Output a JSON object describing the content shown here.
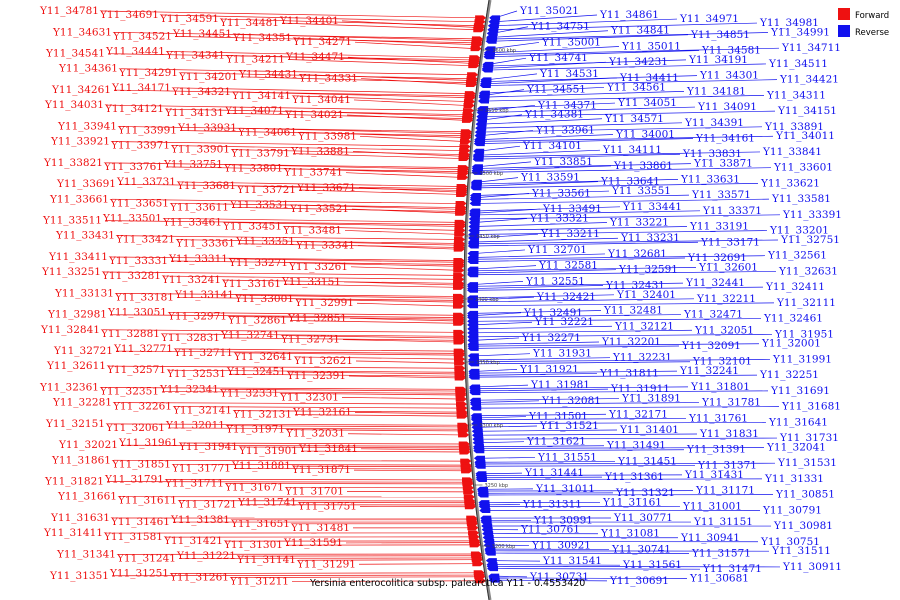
{
  "legend": {
    "forward": {
      "label": "Forward",
      "color": "#ee1111"
    },
    "reverse": {
      "label": "Reverse",
      "color": "#1111ee"
    }
  },
  "caption": "Yersinia enterocolitica subsp. palearctica Y11 - 0.4553420",
  "ticks": [
    "3600 kbp",
    "3550 kbp",
    "3500 kbp",
    "3450 kbp",
    "3400 kbp",
    "3350 kbp",
    "3300 kbp",
    "3250 kbp",
    "3200 kbp"
  ],
  "forward_genes": [
    "Y11_34781",
    "Y11_34691",
    "Y11_34591",
    "Y11_34481",
    "Y11_34401",
    "Y11_34631",
    "Y11_34521",
    "Y11_34451",
    "Y11_34351",
    "Y11_34271",
    "Y11_34541",
    "Y11_34441",
    "Y11_34341",
    "Y11_34211",
    "Y11_34471",
    "Y11_34361",
    "Y11_34291",
    "Y11_34201",
    "Y11_34431",
    "Y11_34331",
    "Y11_34261",
    "Y11_34171",
    "Y11_34321",
    "Y11_34141",
    "Y11_34041",
    "Y11_34031",
    "Y11_34121",
    "Y11_34131",
    "Y11_34071",
    "Y11_34021",
    "Y11_33941",
    "Y11_33991",
    "Y11_33931",
    "Y11_34061",
    "Y11_33981",
    "Y11_33921",
    "Y11_33971",
    "Y11_33901",
    "Y11_33791",
    "Y11_33881",
    "Y11_33821",
    "Y11_33761",
    "Y11_33751",
    "Y11_33801",
    "Y11_33741",
    "Y11_33691",
    "Y11_33731",
    "Y11_33681",
    "Y11_33721",
    "Y11_33671",
    "Y11_33661",
    "Y11_33651",
    "Y11_33611",
    "Y11_33531",
    "Y11_33521",
    "Y11_33511",
    "Y11_33501",
    "Y11_33461",
    "Y11_33451",
    "Y11_33481",
    "Y11_33431",
    "Y11_33421",
    "Y11_33361",
    "Y11_33351",
    "Y11_33341",
    "Y11_33411",
    "Y11_33331",
    "Y11_33311",
    "Y11_33271",
    "Y11_33261",
    "Y11_33251",
    "Y11_33281",
    "Y11_33241",
    "Y11_33161",
    "Y11_33151",
    "Y11_33131",
    "Y11_33181",
    "Y11_33141",
    "Y11_33001",
    "Y11_32991",
    "Y11_32981",
    "Y11_33051",
    "Y11_32971",
    "Y11_32861",
    "Y11_32851",
    "Y11_32841",
    "Y11_32881",
    "Y11_32831",
    "Y11_32741",
    "Y11_32731",
    "Y11_32721",
    "Y11_32771",
    "Y11_32711",
    "Y11_32641",
    "Y11_32621",
    "Y11_32611",
    "Y11_32571",
    "Y11_32531",
    "Y11_32451",
    "Y11_32391",
    "Y11_32361",
    "Y11_32351",
    "Y11_32341",
    "Y11_32331",
    "Y11_32301",
    "Y11_32281",
    "Y11_32261",
    "Y11_32141",
    "Y11_32131",
    "Y11_32161",
    "Y11_32151",
    "Y11_32061",
    "Y11_32011",
    "Y11_31971",
    "Y11_32031",
    "Y11_32021",
    "Y11_31961",
    "Y11_31941",
    "Y11_31901",
    "Y11_31841",
    "Y11_31861",
    "Y11_31851",
    "Y11_31771",
    "Y11_31881",
    "Y11_31871",
    "Y11_31821",
    "Y11_31791",
    "Y11_31711",
    "Y11_31671",
    "Y11_31701",
    "Y11_31661",
    "Y11_31611",
    "Y11_31721",
    "Y11_31741",
    "Y11_31751",
    "Y11_31631",
    "Y11_31461",
    "Y11_31381",
    "Y11_31651",
    "Y11_31481",
    "Y11_31411",
    "Y11_31581",
    "Y11_31421",
    "Y11_31301",
    "Y11_31591",
    "Y11_31341",
    "Y11_31241",
    "Y11_31221",
    "Y11_31141",
    "Y11_31291",
    "Y11_31351",
    "Y11_31251",
    "Y11_31261",
    "Y11_31211"
  ],
  "reverse_genes": [
    "Y11_35021",
    "Y11_34861",
    "Y11_34971",
    "Y11_34981",
    "Y11_34751",
    "Y11_34841",
    "Y11_34851",
    "Y11_34991",
    "Y11_35001",
    "Y11_35011",
    "Y11_34581",
    "Y11_34711",
    "Y11_34741",
    "Y11_34231",
    "Y11_34191",
    "Y11_34511",
    "Y11_34531",
    "Y11_34411",
    "Y11_34301",
    "Y11_34421",
    "Y11_34551",
    "Y11_34561",
    "Y11_34181",
    "Y11_34311",
    "Y11_34371",
    "Y11_34051",
    "Y11_34091",
    "Y11_34151",
    "Y11_34381",
    "Y11_34571",
    "Y11_34391",
    "Y11_33891",
    "Y11_33961",
    "Y11_34001",
    "Y11_34161",
    "Y11_34011",
    "Y11_34101",
    "Y11_34111",
    "Y11_33831",
    "Y11_33841",
    "Y11_33851",
    "Y11_33861",
    "Y11_33871",
    "Y11_33601",
    "Y11_33591",
    "Y11_33641",
    "Y11_33631",
    "Y11_33621",
    "Y11_33561",
    "Y11_33551",
    "Y11_33571",
    "Y11_33581",
    "Y11_33491",
    "Y11_33441",
    "Y11_33371",
    "Y11_33391",
    "Y11_33321",
    "Y11_33221",
    "Y11_33191",
    "Y11_33201",
    "Y11_33211",
    "Y11_33231",
    "Y11_33171",
    "Y11_32751",
    "Y11_32701",
    "Y11_32681",
    "Y11_32691",
    "Y11_32561",
    "Y11_32581",
    "Y11_32591",
    "Y11_32601",
    "Y11_32631",
    "Y11_32551",
    "Y11_32431",
    "Y11_32441",
    "Y11_32411",
    "Y11_32421",
    "Y11_32401",
    "Y11_32211",
    "Y11_32111",
    "Y11_32491",
    "Y11_32481",
    "Y11_32471",
    "Y11_32461",
    "Y11_32221",
    "Y11_32121",
    "Y11_32051",
    "Y11_31951",
    "Y11_32271",
    "Y11_32201",
    "Y11_32091",
    "Y11_32001",
    "Y11_31931",
    "Y11_32231",
    "Y11_32101",
    "Y11_31991",
    "Y11_31921",
    "Y11_31811",
    "Y11_32241",
    "Y11_32251",
    "Y11_31981",
    "Y11_31911",
    "Y11_31801",
    "Y11_31691",
    "Y11_32081",
    "Y11_31891",
    "Y11_31781",
    "Y11_31681",
    "Y11_31501",
    "Y11_32171",
    "Y11_31761",
    "Y11_31641",
    "Y11_31521",
    "Y11_31401",
    "Y11_31831",
    "Y11_31731",
    "Y11_31621",
    "Y11_31491",
    "Y11_31391",
    "Y11_32041",
    "Y11_31551",
    "Y11_31451",
    "Y11_31371",
    "Y11_31531",
    "Y11_31441",
    "Y11_31361",
    "Y11_31431",
    "Y11_31331",
    "Y11_31011",
    "Y11_31321",
    "Y11_31171",
    "Y11_30851",
    "Y11_31311",
    "Y11_31161",
    "Y11_31001",
    "Y11_30791",
    "Y11_30991",
    "Y11_30771",
    "Y11_31151",
    "Y11_30981",
    "Y11_30761",
    "Y11_31081",
    "Y11_30941",
    "Y11_30751",
    "Y11_30921",
    "Y11_30741",
    "Y11_31571",
    "Y11_31511",
    "Y11_31541",
    "Y11_31561",
    "Y11_31471",
    "Y11_30911",
    "Y11_30731",
    "Y11_30691",
    "Y11_30681"
  ]
}
